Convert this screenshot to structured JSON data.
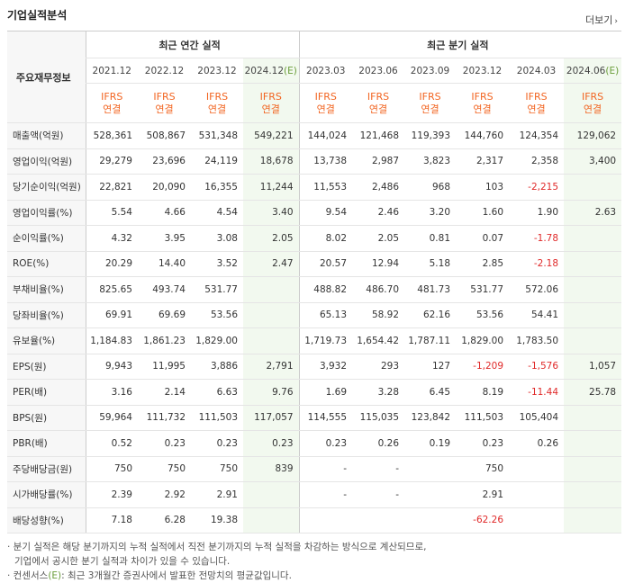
{
  "title": "기업실적분석",
  "more_label": "더보기",
  "header": {
    "corner_label": "주요재무정보",
    "annual_label": "최근 연간 실적",
    "quarter_label": "최근 분기 실적",
    "periods": [
      "2021.12",
      "2022.12",
      "2023.12",
      "2024.12",
      "2023.03",
      "2023.06",
      "2023.09",
      "2023.12",
      "2024.03",
      "2024.06"
    ],
    "estimate_tag": "(E)",
    "ifrs_top": "IFRS",
    "ifrs_bottom": "연결"
  },
  "rows": [
    {
      "label": "매출액(억원)",
      "values": [
        "528,361",
        "508,867",
        "531,348",
        "549,221",
        "144,024",
        "121,468",
        "119,393",
        "144,760",
        "124,354",
        "129,062"
      ]
    },
    {
      "label": "영업이익(억원)",
      "values": [
        "29,279",
        "23,696",
        "24,119",
        "18,678",
        "13,738",
        "2,987",
        "3,823",
        "2,317",
        "2,358",
        "3,400"
      ]
    },
    {
      "label": "당기순이익(억원)",
      "values": [
        "22,821",
        "20,090",
        "16,355",
        "11,244",
        "11,553",
        "2,486",
        "968",
        "103",
        "-2,215",
        ""
      ]
    },
    {
      "label": "영업이익률(%)",
      "values": [
        "5.54",
        "4.66",
        "4.54",
        "3.40",
        "9.54",
        "2.46",
        "3.20",
        "1.60",
        "1.90",
        "2.63"
      ]
    },
    {
      "label": "순이익률(%)",
      "values": [
        "4.32",
        "3.95",
        "3.08",
        "2.05",
        "8.02",
        "2.05",
        "0.81",
        "0.07",
        "-1.78",
        ""
      ]
    },
    {
      "label": "ROE(%)",
      "values": [
        "20.29",
        "14.40",
        "3.52",
        "2.47",
        "20.57",
        "12.94",
        "5.18",
        "2.85",
        "-2.18",
        ""
      ]
    },
    {
      "label": "부채비율(%)",
      "values": [
        "825.65",
        "493.74",
        "531.77",
        "",
        "488.82",
        "486.70",
        "481.73",
        "531.77",
        "572.06",
        ""
      ]
    },
    {
      "label": "당좌비율(%)",
      "values": [
        "69.91",
        "69.69",
        "53.56",
        "",
        "65.13",
        "58.92",
        "62.16",
        "53.56",
        "54.41",
        ""
      ]
    },
    {
      "label": "유보율(%)",
      "values": [
        "1,184.83",
        "1,861.23",
        "1,829.00",
        "",
        "1,719.73",
        "1,654.42",
        "1,787.11",
        "1,829.00",
        "1,783.50",
        ""
      ]
    },
    {
      "label": "EPS(원)",
      "values": [
        "9,943",
        "11,995",
        "3,886",
        "2,791",
        "3,932",
        "293",
        "127",
        "-1,209",
        "-1,576",
        "1,057"
      ]
    },
    {
      "label": "PER(배)",
      "values": [
        "3.16",
        "2.14",
        "6.63",
        "9.76",
        "1.69",
        "3.28",
        "6.45",
        "8.19",
        "-11.44",
        "25.78"
      ]
    },
    {
      "label": "BPS(원)",
      "values": [
        "59,964",
        "111,732",
        "111,503",
        "117,057",
        "114,555",
        "115,035",
        "123,842",
        "111,503",
        "105,404",
        ""
      ]
    },
    {
      "label": "PBR(배)",
      "values": [
        "0.52",
        "0.23",
        "0.23",
        "0.23",
        "0.23",
        "0.26",
        "0.19",
        "0.23",
        "0.26",
        ""
      ]
    },
    {
      "label": "주당배당금(원)",
      "values": [
        "750",
        "750",
        "750",
        "839",
        "-",
        "-",
        "",
        "750",
        "",
        ""
      ]
    },
    {
      "label": "시가배당률(%)",
      "values": [
        "2.39",
        "2.92",
        "2.91",
        "",
        "-",
        "-",
        "",
        "2.91",
        "",
        ""
      ]
    },
    {
      "label": "배당성향(%)",
      "values": [
        "7.18",
        "6.28",
        "19.38",
        "",
        "",
        "",
        "",
        "-62.26",
        "",
        ""
      ]
    }
  ],
  "notes": {
    "line1": "· 분기 실적은 해당 분기까지의 누적 실적에서 직전 분기까지의 누적 실적을 차감하는 방식으로 계산되므로,",
    "line2": "기업에서 공시한 분기 실적과 차이가 있을 수 있습니다.",
    "line3_prefix": "· 컨센서스",
    "line3_tag": "(E)",
    "line3_suffix": ": 최근 3개월간 증권사에서 발표한 전망치의 평균값입니다."
  }
}
